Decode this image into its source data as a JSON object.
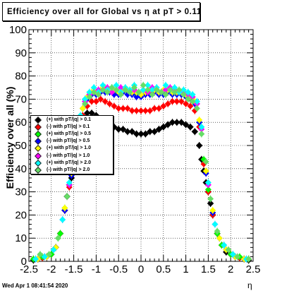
{
  "title": "Efficiency over all for Global vs   η at pT > 0.11",
  "timestamp": "Wed Apr  1 08:41:54 2020",
  "chart_data": {
    "type": "scatter",
    "title": "Efficiency over all for Global vs   η at pT > 0.11",
    "xlabel": "η",
    "ylabel": "Efficiency over all (%)",
    "xlim": [
      -2.5,
      2.5
    ],
    "ylim": [
      0,
      100
    ],
    "x_ticks": [
      "-2.5",
      "-2",
      "-1.5",
      "-1",
      "-0.5",
      "0",
      "0.5",
      "1",
      "1.5",
      "2",
      "2.5"
    ],
    "y_ticks": [
      "0",
      "10",
      "20",
      "30",
      "40",
      "50",
      "60",
      "70",
      "80",
      "90",
      "100"
    ],
    "grid": true,
    "legend_position": "left",
    "series": [
      {
        "name": "(+) with pT/|q| > 0.1",
        "color": "#000000",
        "x": [
          -2.4,
          -2.3,
          -2.2,
          -2.1,
          -2.0,
          -1.9,
          -1.8,
          -1.7,
          -1.65,
          -1.6,
          -1.55,
          -1.5,
          -1.45,
          -1.4,
          -1.3,
          -1.2,
          -1.1,
          -1.0,
          -0.9,
          -0.8,
          -0.7,
          -0.6,
          -0.5,
          -0.4,
          -0.3,
          -0.2,
          -0.1,
          0.0,
          0.1,
          0.2,
          0.3,
          0.4,
          0.5,
          0.6,
          0.7,
          0.8,
          0.9,
          1.0,
          1.1,
          1.2,
          1.3,
          1.35,
          1.4,
          1.45,
          1.5,
          1.55,
          1.6,
          1.7,
          1.8,
          1.9,
          2.0,
          2.1,
          2.2,
          2.3,
          2.4
        ],
        "y": [
          0.5,
          1,
          1.5,
          2,
          3,
          6,
          12,
          22,
          28,
          33,
          36,
          40,
          46,
          52,
          60,
          64,
          64,
          63,
          61,
          59,
          58,
          58,
          57,
          57,
          56,
          56,
          55,
          55,
          55,
          56,
          56,
          57,
          58,
          59,
          60,
          60,
          60,
          59,
          58,
          56,
          50,
          44,
          39,
          34,
          30,
          25,
          20,
          12,
          7,
          4,
          3,
          2,
          1.5,
          1,
          0.5
        ]
      },
      {
        "name": "(-) with pT/|q| > 0.1",
        "color": "#ff0000",
        "x": [
          -2.4,
          -2.2,
          -2.0,
          -1.8,
          -1.7,
          -1.6,
          -1.5,
          -1.4,
          -1.3,
          -1.2,
          -1.1,
          -1.0,
          -0.9,
          -0.8,
          -0.7,
          -0.6,
          -0.5,
          -0.4,
          -0.3,
          -0.2,
          -0.1,
          0.0,
          0.1,
          0.2,
          0.3,
          0.4,
          0.5,
          0.6,
          0.7,
          0.8,
          0.9,
          1.0,
          1.1,
          1.2,
          1.3,
          1.4,
          1.5,
          1.6,
          1.7,
          1.8,
          2.0,
          2.2,
          2.4
        ],
        "y": [
          1,
          1.5,
          3,
          12,
          22,
          32,
          40,
          54,
          63,
          67,
          69,
          69,
          70,
          69,
          68,
          67,
          66,
          66,
          66,
          65,
          65,
          65,
          65,
          65,
          66,
          66,
          67,
          68,
          69,
          69,
          69,
          68,
          67,
          65,
          58,
          42,
          30,
          20,
          12,
          7,
          3,
          1.5,
          1
        ]
      },
      {
        "name": "(+) with pT/|q| > 0.5",
        "color": "#00ff00",
        "x": [
          -2.4,
          -2.2,
          -2.0,
          -1.8,
          -1.7,
          -1.6,
          -1.5,
          -1.4,
          -1.3,
          -1.2,
          -1.1,
          -1.0,
          -0.9,
          -0.8,
          -0.7,
          -0.6,
          -0.5,
          -0.4,
          -0.3,
          -0.2,
          -0.1,
          0.0,
          0.1,
          0.2,
          0.3,
          0.4,
          0.5,
          0.6,
          0.7,
          0.8,
          0.9,
          1.0,
          1.1,
          1.2,
          1.3,
          1.4,
          1.5,
          1.6,
          1.7,
          1.8,
          2.0,
          2.2,
          2.4
        ],
        "y": [
          1,
          2,
          3,
          12,
          23,
          33,
          41,
          56,
          66,
          70,
          72,
          73,
          73,
          74,
          74,
          73,
          73,
          74,
          73,
          73,
          72,
          72,
          73,
          73,
          74,
          73,
          73,
          74,
          73,
          73,
          72,
          72,
          71,
          69,
          60,
          44,
          31,
          21,
          12,
          7,
          3,
          2,
          1
        ]
      },
      {
        "name": "(-) with pT/|q| > 0.5",
        "color": "#0000ff",
        "x": [
          -2.3,
          -2.1,
          -1.9,
          -1.7,
          -1.55,
          -1.4,
          -1.3,
          -1.2,
          -1.1,
          -1.0,
          -0.9,
          -0.8,
          -0.7,
          -0.6,
          -0.5,
          -0.4,
          -0.3,
          -0.2,
          -0.1,
          0.0,
          0.1,
          0.2,
          0.3,
          0.4,
          0.5,
          0.6,
          0.7,
          0.8,
          0.9,
          1.0,
          1.1,
          1.2,
          1.3,
          1.45,
          1.6,
          1.75,
          1.9,
          2.1,
          2.3
        ],
        "y": [
          1,
          2,
          6,
          22,
          37,
          56,
          66,
          70,
          72,
          72,
          73,
          73,
          73,
          72,
          72,
          73,
          72,
          72,
          71,
          71,
          72,
          72,
          73,
          72,
          72,
          73,
          72,
          72,
          72,
          71,
          70,
          68,
          60,
          38,
          21,
          10,
          5,
          2,
          1
        ]
      },
      {
        "name": "(+) with pT/|q| > 1.0",
        "color": "#ffff00",
        "x": [
          -2.3,
          -2.1,
          -1.9,
          -1.7,
          -1.55,
          -1.4,
          -1.3,
          -1.2,
          -1.1,
          -1.0,
          -0.9,
          -0.8,
          -0.7,
          -0.6,
          -0.5,
          -0.4,
          -0.3,
          -0.2,
          -0.1,
          0.0,
          0.1,
          0.2,
          0.3,
          0.4,
          0.5,
          0.6,
          0.7,
          0.8,
          0.9,
          1.0,
          1.1,
          1.2,
          1.3,
          1.45,
          1.6,
          1.75,
          1.9,
          2.1,
          2.3
        ],
        "y": [
          1,
          2,
          6,
          23,
          38,
          57,
          66,
          71,
          73,
          73,
          74,
          75,
          74,
          74,
          73,
          74,
          74,
          73,
          73,
          72,
          73,
          74,
          74,
          73,
          74,
          74,
          73,
          73,
          73,
          72,
          71,
          69,
          61,
          39,
          22,
          10,
          5,
          2,
          1
        ]
      },
      {
        "name": "(-) with pT/|q| > 1.0",
        "color": "#ff00ff",
        "x": [
          -2.35,
          -2.15,
          -1.95,
          -1.75,
          -1.6,
          -1.45,
          -1.35,
          -1.25,
          -1.15,
          -1.05,
          -0.95,
          -0.85,
          -0.75,
          -0.65,
          -0.55,
          -0.45,
          -0.35,
          -0.25,
          -0.15,
          -0.05,
          0.05,
          0.15,
          0.25,
          0.35,
          0.45,
          0.55,
          0.65,
          0.75,
          0.85,
          0.95,
          1.05,
          1.15,
          1.25,
          1.35,
          1.5,
          1.65,
          1.85,
          2.05,
          2.35
        ],
        "y": [
          1,
          2,
          5,
          18,
          33,
          48,
          62,
          69,
          72,
          73,
          74,
          74,
          75,
          73,
          74,
          75,
          74,
          73,
          74,
          73,
          74,
          73,
          75,
          74,
          73,
          74,
          75,
          74,
          73,
          73,
          72,
          71,
          68,
          57,
          33,
          16,
          7,
          3,
          1
        ]
      },
      {
        "name": "(+) with pT/|q| > 2.0",
        "color": "#00ffff",
        "x": [
          -2.35,
          -2.15,
          -1.95,
          -1.75,
          -1.6,
          -1.45,
          -1.35,
          -1.25,
          -1.15,
          -1.05,
          -0.95,
          -0.85,
          -0.75,
          -0.65,
          -0.55,
          -0.45,
          -0.35,
          -0.25,
          -0.15,
          -0.05,
          0.05,
          0.15,
          0.25,
          0.35,
          0.45,
          0.55,
          0.65,
          0.75,
          0.85,
          0.95,
          1.05,
          1.15,
          1.25,
          1.35,
          1.5,
          1.65,
          1.85,
          2.05,
          2.35
        ],
        "y": [
          1,
          2,
          5,
          18,
          34,
          49,
          63,
          70,
          73,
          75,
          73,
          76,
          74,
          75,
          76,
          73,
          75,
          74,
          76,
          73,
          74,
          76,
          74,
          75,
          73,
          76,
          74,
          75,
          73,
          74,
          73,
          72,
          69,
          58,
          34,
          16,
          7,
          3,
          1
        ]
      },
      {
        "name": "(-) with pT/|q| > 2.0",
        "color": "#66dd66",
        "x": [
          -2.25,
          -2.05,
          -1.85,
          -1.65,
          -1.5,
          -1.35,
          -1.25,
          -1.15,
          -1.05,
          -0.95,
          -0.85,
          -0.75,
          -0.65,
          -0.55,
          -0.45,
          -0.35,
          -0.25,
          -0.15,
          -0.05,
          0.05,
          0.15,
          0.25,
          0.35,
          0.45,
          0.55,
          0.65,
          0.75,
          0.85,
          0.95,
          1.05,
          1.15,
          1.25,
          1.35,
          1.45,
          1.55,
          1.7,
          1.95,
          2.15,
          2.4
        ],
        "y": [
          3,
          3,
          10,
          28,
          44,
          61,
          68,
          71,
          73,
          72,
          74,
          73,
          75,
          74,
          72,
          74,
          73,
          75,
          73,
          76,
          74,
          72,
          74,
          73,
          72,
          74,
          73,
          74,
          72,
          70,
          69,
          66,
          55,
          43,
          27,
          13,
          5,
          2,
          1
        ]
      }
    ]
  }
}
